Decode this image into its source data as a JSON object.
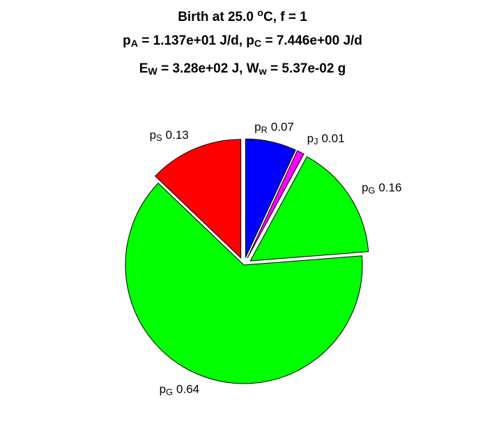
{
  "chart_data": {
    "type": "pie",
    "title": [
      [
        "Birth at 25.0 ",
        {
          "sup": "o"
        },
        "C, f = 1"
      ],
      [
        "p",
        {
          "sub": "A"
        },
        " = 1.137e+01 J/d, p",
        {
          "sub": "C"
        },
        " = 7.446e+00 J/d"
      ],
      [
        "E",
        {
          "sub": "W"
        },
        " = 3.28e+02 J, W",
        {
          "sub": "w"
        },
        " = 5.37e-02 g"
      ]
    ],
    "categories": [
      [
        "p",
        {
          "sub": "R"
        }
      ],
      [
        "p",
        {
          "sub": "J"
        }
      ],
      [
        "p",
        {
          "sub": "G"
        }
      ],
      [
        "p",
        {
          "sub": "G"
        }
      ],
      [
        "p",
        {
          "sub": "S"
        }
      ]
    ],
    "values": [
      0.07,
      0.01,
      0.16,
      0.64,
      0.13
    ],
    "colors": [
      "#0000ff",
      "#ff00ff",
      "#00ff00",
      "#00ff00",
      "#ff0000"
    ],
    "explode": [
      true,
      true,
      true,
      false,
      true
    ],
    "direction": "clockwise",
    "start_angle": 90
  }
}
